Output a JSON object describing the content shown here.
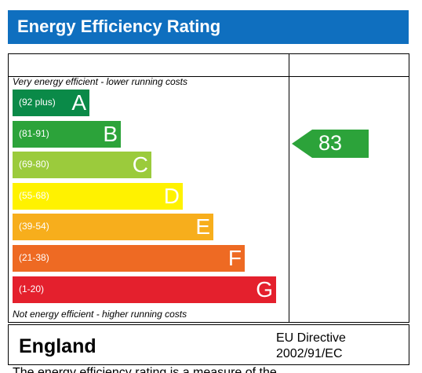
{
  "header": {
    "title": "Energy Efficiency Rating"
  },
  "captions": {
    "top": "Very energy efficient - lower running costs",
    "bottom": "Not energy efficient - higher running costs"
  },
  "bands": [
    {
      "range": "(92 plus)",
      "letter": "A",
      "color": "#0a8a48"
    },
    {
      "range": "(81-91)",
      "letter": "B",
      "color": "#2ca33a"
    },
    {
      "range": "(69-80)",
      "letter": "C",
      "color": "#9bcb3c"
    },
    {
      "range": "(55-68)",
      "letter": "D",
      "color": "#fff200"
    },
    {
      "range": "(39-54)",
      "letter": "E",
      "color": "#f7ae1c"
    },
    {
      "range": "(21-38)",
      "letter": "F",
      "color": "#ee6a23"
    },
    {
      "range": "(1-20)",
      "letter": "G",
      "color": "#e4202d"
    }
  ],
  "current_rating": {
    "value": "83",
    "color": "#2ca33a"
  },
  "footer": {
    "country": "England",
    "directive_line1": "EU Directive",
    "directive_line2": "2002/91/EC"
  },
  "truncated_text": "The energy efficiency rating is a measure of the"
}
